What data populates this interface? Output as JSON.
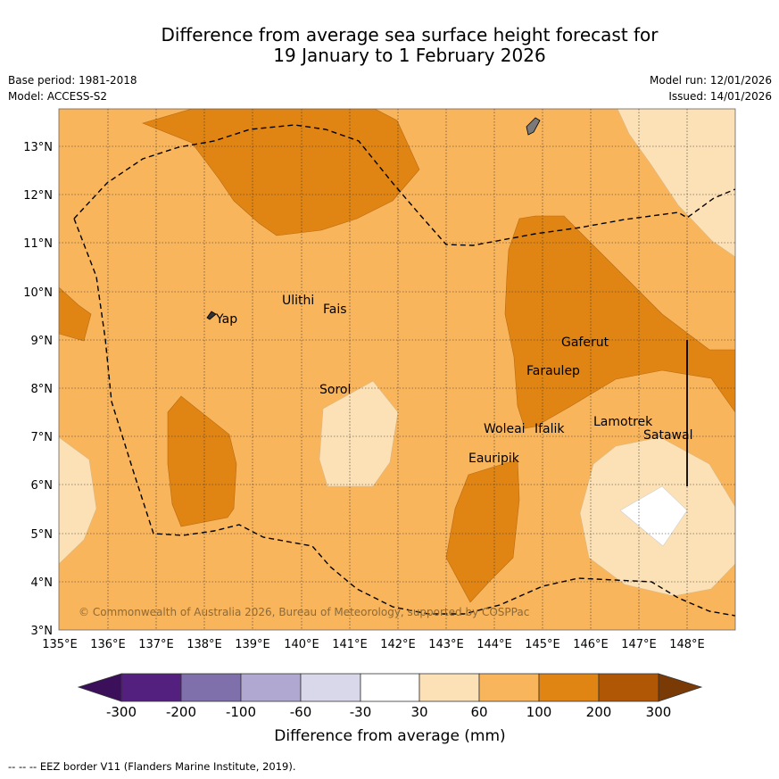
{
  "title_line1": "Difference from average sea surface height forecast for",
  "title_line2": "19 January to 1 February 2026",
  "base_period": "Base period: 1981-2018",
  "model": "Model: ACCESS-S2",
  "model_run": "Model run: 12/01/2026",
  "issued": "Issued: 14/01/2026",
  "copyright": "© Commonwealth of Australia 2026, Bureau of Meteorology, supported by COSPPac",
  "footnote": "--  --  -- EEZ border V11 (Flanders Marine Institute, 2019).",
  "map": {
    "lon_labels": [
      "135°E",
      "136°E",
      "137°E",
      "138°E",
      "139°E",
      "140°E",
      "141°E",
      "142°E",
      "143°E",
      "144°E",
      "145°E",
      "146°E",
      "147°E",
      "148°E"
    ],
    "lat_labels": [
      "13°N",
      "12°N",
      "11°N",
      "10°N",
      "9°N",
      "8°N",
      "7°N",
      "6°N",
      "5°N",
      "4°N",
      "3°N"
    ],
    "places": [
      "Yap",
      "Ulithi",
      "Fais",
      "Sorol",
      "Gaferut",
      "Faraulep",
      "Woleai",
      "Ifalik",
      "Lamotrek",
      "Satawal",
      "Eauripik"
    ]
  },
  "colorbar": {
    "title": "Difference from average (mm)",
    "ticks": [
      "-300",
      "-200",
      "-100",
      "-60",
      "-30",
      "30",
      "60",
      "100",
      "200",
      "300"
    ],
    "colors": [
      "#3b0f5a",
      "#54207f",
      "#7f6fab",
      "#b0a8d0",
      "#d9d8ea",
      "#ffffff",
      "#fde1b6",
      "#f9b55c",
      "#e08414",
      "#b05706",
      "#7a3a06"
    ]
  }
}
